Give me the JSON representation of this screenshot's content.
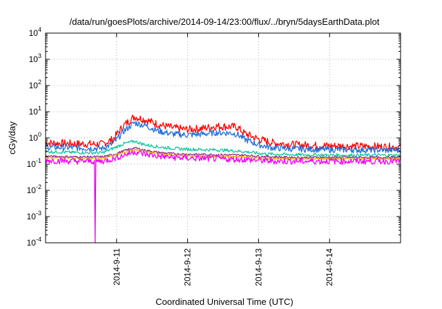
{
  "chart_data": {
    "type": "line",
    "title": "/data/run/goesPlots/archive/2014-09-14/23:00/flux/../bryn/5daysEarthData.plot",
    "xlabel": "Coordinated Universal Time (UTC)",
    "ylabel": "cGy/day",
    "yscale": "log",
    "ylim": [
      0.0001,
      10000
    ],
    "xlim": [
      0,
      5
    ],
    "y_ticks": [
      {
        "value": 0.0001,
        "base": "10",
        "exp": "-4"
      },
      {
        "value": 0.001,
        "base": "10",
        "exp": "-3"
      },
      {
        "value": 0.01,
        "base": "10",
        "exp": "-2"
      },
      {
        "value": 0.1,
        "base": "10",
        "exp": "-1"
      },
      {
        "value": 1,
        "base": "10",
        "exp": "0"
      },
      {
        "value": 10,
        "base": "10",
        "exp": "1"
      },
      {
        "value": 100,
        "base": "10",
        "exp": "2"
      },
      {
        "value": 1000,
        "base": "10",
        "exp": "3"
      },
      {
        "value": 10000,
        "base": "10",
        "exp": "4"
      }
    ],
    "x_ticks": [
      {
        "value": 1,
        "label": "2014-9-11"
      },
      {
        "value": 2,
        "label": "2014-9-12"
      },
      {
        "value": 3,
        "label": "2014-9-13"
      },
      {
        "value": 4,
        "label": "2014-9-14"
      }
    ],
    "grid": true,
    "series": [
      {
        "color": "#ff0000",
        "x": [
          0,
          0.4,
          0.8,
          0.95,
          1.1,
          1.25,
          1.4,
          1.6,
          1.8,
          2.0,
          2.2,
          2.4,
          2.6,
          2.7,
          2.8,
          3.0,
          3.2,
          3.5,
          4.0,
          4.5,
          5.0
        ],
        "y": [
          0.65,
          0.6,
          0.58,
          0.9,
          3.0,
          6.5,
          5.0,
          3.2,
          2.4,
          2.1,
          2.3,
          2.8,
          2.7,
          2.6,
          1.5,
          0.9,
          0.65,
          0.55,
          0.5,
          0.48,
          0.45
        ],
        "noise": 0.15
      },
      {
        "color": "#1e6fd9",
        "x": [
          0,
          0.4,
          0.8,
          0.95,
          1.1,
          1.25,
          1.4,
          1.6,
          1.8,
          2.0,
          2.2,
          2.4,
          2.6,
          2.7,
          2.8,
          3.0,
          3.2,
          3.5,
          4.0,
          4.5,
          5.0
        ],
        "y": [
          0.45,
          0.42,
          0.4,
          0.6,
          1.8,
          3.8,
          3.0,
          1.8,
          1.4,
          1.3,
          1.4,
          1.6,
          1.55,
          1.4,
          0.9,
          0.55,
          0.42,
          0.38,
          0.36,
          0.35,
          0.34
        ],
        "noise": 0.12
      },
      {
        "color": "#12c6a0",
        "x": [
          0,
          0.4,
          0.8,
          0.95,
          1.1,
          1.25,
          1.4,
          1.6,
          1.8,
          2.0,
          2.2,
          2.4,
          2.6,
          2.8,
          3.0,
          3.2,
          3.5,
          4.0,
          4.5,
          5.0
        ],
        "y": [
          0.3,
          0.28,
          0.27,
          0.4,
          0.6,
          0.75,
          0.55,
          0.45,
          0.4,
          0.37,
          0.36,
          0.35,
          0.33,
          0.3,
          0.26,
          0.24,
          0.23,
          0.22,
          0.22,
          0.22
        ],
        "noise": 0.06
      },
      {
        "color": "#8b2a8b",
        "x": [
          0,
          0.4,
          0.8,
          0.95,
          1.1,
          1.25,
          1.4,
          1.6,
          1.8,
          2.0,
          2.4,
          2.8,
          3.0,
          3.2,
          3.5,
          4.0,
          4.5,
          5.0
        ],
        "y": [
          0.2,
          0.19,
          0.19,
          0.23,
          0.32,
          0.42,
          0.34,
          0.28,
          0.25,
          0.24,
          0.23,
          0.22,
          0.2,
          0.19,
          0.18,
          0.18,
          0.18,
          0.18
        ],
        "noise": 0.04
      },
      {
        "color": "#f2a900",
        "x": [
          0,
          0.4,
          0.8,
          0.95,
          1.1,
          1.25,
          1.4,
          1.6,
          1.8,
          2.0,
          2.4,
          2.8,
          3.0,
          3.2,
          3.5,
          4.0,
          4.5,
          5.0
        ],
        "y": [
          0.18,
          0.17,
          0.17,
          0.21,
          0.28,
          0.36,
          0.3,
          0.25,
          0.22,
          0.21,
          0.2,
          0.19,
          0.17,
          0.16,
          0.16,
          0.16,
          0.16,
          0.16
        ],
        "noise": 0.03
      },
      {
        "color": "#ee00ee",
        "x": [
          0,
          0.4,
          0.8,
          0.95,
          1.1,
          1.25,
          1.4,
          1.6,
          1.8,
          2.0,
          2.4,
          2.8,
          3.0,
          3.2,
          3.5,
          4.0,
          4.5,
          5.0
        ],
        "y": [
          0.14,
          0.13,
          0.13,
          0.16,
          0.22,
          0.3,
          0.24,
          0.2,
          0.18,
          0.17,
          0.16,
          0.15,
          0.14,
          0.13,
          0.13,
          0.13,
          0.13,
          0.13
        ],
        "noise": 0.12,
        "dropout_x": 0.7
      }
    ]
  }
}
